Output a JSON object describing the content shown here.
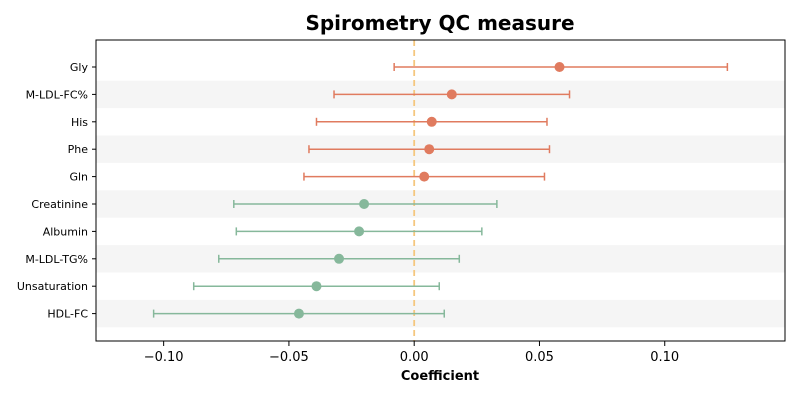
{
  "chart_data": {
    "type": "forest",
    "title": "Spirometry QC measure",
    "xlabel": "Coefficient",
    "ylabel": "",
    "xlim": [
      -0.127,
      0.148
    ],
    "xticks": [
      -0.1,
      -0.05,
      0.0,
      0.05,
      0.1
    ],
    "xtick_labels": [
      "−0.10",
      "−0.05",
      "0.00",
      "0.05",
      "0.10"
    ],
    "reference_line": {
      "x": 0.0,
      "style": "dashed",
      "color": "#f5c77e"
    },
    "grid": false,
    "row_banding": true,
    "colors": {
      "positive": "#e07b5f",
      "negative": "#86b89b",
      "band": "#f5f5f5"
    },
    "points": [
      {
        "label": "Gly",
        "estimate": 0.058,
        "ci_low": -0.008,
        "ci_high": 0.125,
        "color": "#e07b5f"
      },
      {
        "label": "M-LDL-FC%",
        "estimate": 0.015,
        "ci_low": -0.032,
        "ci_high": 0.062,
        "color": "#e07b5f"
      },
      {
        "label": "His",
        "estimate": 0.007,
        "ci_low": -0.039,
        "ci_high": 0.053,
        "color": "#e07b5f"
      },
      {
        "label": "Phe",
        "estimate": 0.006,
        "ci_low": -0.042,
        "ci_high": 0.054,
        "color": "#e07b5f"
      },
      {
        "label": "Gln",
        "estimate": 0.004,
        "ci_low": -0.044,
        "ci_high": 0.052,
        "color": "#e07b5f"
      },
      {
        "label": "Creatinine",
        "estimate": -0.02,
        "ci_low": -0.072,
        "ci_high": 0.033,
        "color": "#86b89b"
      },
      {
        "label": "Albumin",
        "estimate": -0.022,
        "ci_low": -0.071,
        "ci_high": 0.027,
        "color": "#86b89b"
      },
      {
        "label": "M-LDL-TG%",
        "estimate": -0.03,
        "ci_low": -0.078,
        "ci_high": 0.018,
        "color": "#86b89b"
      },
      {
        "label": "Unsaturation",
        "estimate": -0.039,
        "ci_low": -0.088,
        "ci_high": 0.01,
        "color": "#86b89b"
      },
      {
        "label": "HDL-FC",
        "estimate": -0.046,
        "ci_low": -0.104,
        "ci_high": 0.012,
        "color": "#86b89b"
      }
    ]
  }
}
